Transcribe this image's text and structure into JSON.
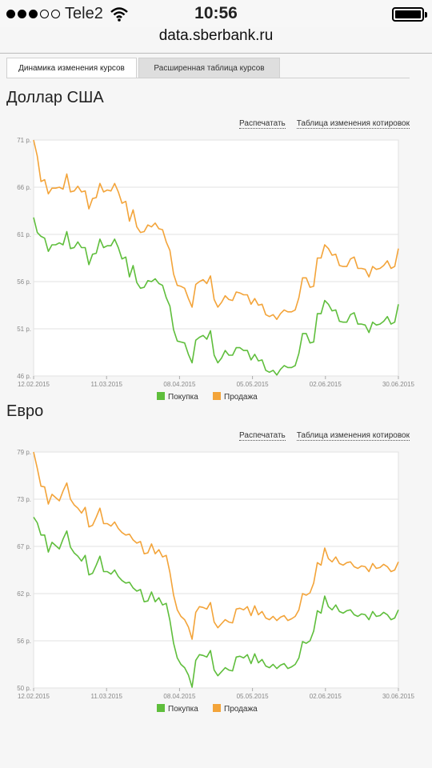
{
  "status_bar": {
    "carrier": "Tele2",
    "time": "10:56",
    "signal_full": 3,
    "signal_total": 5
  },
  "browser": {
    "url": "data.sberbank.ru"
  },
  "tabs": [
    {
      "label": "Динамика изменения курсов",
      "active": true
    },
    {
      "label": "Расширенная таблица курсов",
      "active": false
    }
  ],
  "links": {
    "print": "Распечатать",
    "table": "Таблица изменения котировок"
  },
  "colors": {
    "buy": "#5fbe3c",
    "sell": "#f3a43a",
    "grid": "#e2e2e2",
    "axis": "#aaaaaa"
  },
  "chart_data": [
    {
      "type": "line",
      "title": "Доллар США",
      "x_tick_labels": [
        "12.02.2015",
        "11.03.2015",
        "08.04.2015",
        "05.05.2015",
        "02.06.2015",
        "30.06.2015"
      ],
      "y_tick_labels": [
        "71 р.",
        "66 р.",
        "61 р.",
        "56 р.",
        "51 р.",
        "46 р."
      ],
      "ylim": [
        46,
        71
      ],
      "legend": [
        "Покупка",
        "Продажа"
      ],
      "series": [
        {
          "name": "Покупка",
          "values": [
            62.8,
            61.2,
            60.8,
            60.6,
            59.2,
            59.9,
            59.9,
            60.1,
            59.9,
            61.3,
            59.5,
            59.6,
            60.2,
            59.6,
            59.6,
            57.8,
            58.9,
            59.0,
            60.5,
            59.6,
            59.8,
            59.8,
            60.5,
            59.6,
            58.4,
            58.6,
            56.5,
            57.7,
            55.9,
            55.3,
            55.4,
            56.1,
            56.0,
            56.3,
            55.8,
            55.6,
            54.3,
            53.4,
            50.9,
            49.7,
            49.6,
            49.5,
            48.3,
            47.4,
            49.8,
            50.1,
            50.3,
            49.9,
            50.8,
            48.2,
            47.4,
            47.9,
            48.7,
            48.2,
            48.2,
            49.0,
            49.0,
            48.7,
            48.7,
            47.7,
            48.3,
            47.6,
            47.7,
            46.6,
            46.4,
            46.6,
            46.1,
            46.7,
            47.1,
            46.9,
            46.9,
            47.1,
            48.4,
            50.5,
            50.5,
            49.5,
            49.6,
            52.6,
            52.6,
            54.0,
            53.6,
            52.9,
            53.0,
            51.8,
            51.7,
            51.7,
            52.5,
            52.7,
            51.5,
            51.5,
            51.4,
            50.6,
            51.7,
            51.4,
            51.5,
            51.8,
            52.3,
            51.5,
            51.7,
            53.6
          ]
        },
        {
          "name": "Продажа",
          "values": [
            71.0,
            69.3,
            66.6,
            66.8,
            65.3,
            65.9,
            65.9,
            66.0,
            65.8,
            67.4,
            65.5,
            65.6,
            66.1,
            65.5,
            65.6,
            63.7,
            64.8,
            64.9,
            66.4,
            65.5,
            65.7,
            65.6,
            66.4,
            65.5,
            64.3,
            64.5,
            62.4,
            63.6,
            61.8,
            61.2,
            61.3,
            62.0,
            61.8,
            62.2,
            61.6,
            61.5,
            60.2,
            59.3,
            56.8,
            55.6,
            55.5,
            55.3,
            54.2,
            53.3,
            55.7,
            56.0,
            56.2,
            55.8,
            56.6,
            54.1,
            53.3,
            53.8,
            54.5,
            54.1,
            54.0,
            54.9,
            54.8,
            54.6,
            54.6,
            53.6,
            54.2,
            53.5,
            53.6,
            52.5,
            52.3,
            52.5,
            52.0,
            52.6,
            53.0,
            52.8,
            52.8,
            53.0,
            54.3,
            56.4,
            56.4,
            55.4,
            55.5,
            58.5,
            58.5,
            59.9,
            59.5,
            58.8,
            58.9,
            57.7,
            57.6,
            57.6,
            58.4,
            58.6,
            57.4,
            57.4,
            57.3,
            56.5,
            57.6,
            57.3,
            57.4,
            57.7,
            58.2,
            57.4,
            57.6,
            59.5
          ]
        }
      ]
    },
    {
      "type": "line",
      "title": "Евро",
      "x_tick_labels": [
        "12.02.2015",
        "11.03.2015",
        "08.04.2015",
        "05.05.2015",
        "02.06.2015",
        "30.06.2015"
      ],
      "y_tick_labels": [
        "79 р.",
        "73 р.",
        "67 р.",
        "62 р.",
        "56 р.",
        "50 р."
      ],
      "ylim": [
        50,
        79
      ],
      "legend": [
        "Покупка",
        "Продажа"
      ],
      "series": [
        {
          "name": "Покупка",
          "values": [
            71.0,
            70.3,
            68.8,
            68.8,
            66.7,
            67.9,
            67.5,
            67.1,
            68.3,
            69.3,
            67.3,
            66.6,
            66.2,
            65.6,
            66.3,
            63.9,
            64.1,
            65.1,
            66.2,
            64.3,
            64.3,
            64.0,
            64.5,
            63.7,
            63.2,
            62.9,
            63.0,
            62.3,
            61.9,
            62.1,
            60.6,
            60.7,
            61.8,
            60.6,
            61.1,
            60.2,
            60.4,
            58.3,
            55.5,
            53.7,
            52.9,
            52.5,
            51.6,
            50.1,
            53.4,
            54.1,
            54.0,
            53.8,
            54.6,
            52.2,
            51.5,
            52.0,
            52.5,
            52.2,
            52.1,
            53.8,
            53.9,
            53.7,
            54.1,
            53.0,
            54.2,
            53.1,
            53.5,
            52.7,
            52.5,
            52.9,
            52.4,
            52.8,
            53.0,
            52.4,
            52.6,
            52.9,
            53.7,
            55.7,
            55.5,
            55.8,
            57.0,
            59.5,
            59.2,
            61.3,
            60.0,
            59.6,
            60.2,
            59.4,
            59.2,
            59.5,
            59.6,
            59.0,
            58.8,
            59.1,
            59.0,
            58.4,
            59.4,
            58.8,
            58.9,
            59.3,
            59.0,
            58.4,
            58.6,
            59.6
          ]
        },
        {
          "name": "Продажа",
          "values": [
            79.0,
            77.0,
            74.8,
            74.7,
            72.6,
            73.8,
            73.4,
            73.0,
            74.2,
            75.2,
            73.2,
            72.5,
            72.1,
            71.5,
            72.2,
            69.8,
            70.0,
            71.0,
            72.1,
            70.2,
            70.2,
            69.9,
            70.4,
            69.6,
            69.1,
            68.8,
            68.9,
            68.2,
            67.8,
            68.0,
            66.5,
            66.6,
            67.7,
            66.5,
            67.0,
            66.1,
            66.3,
            64.2,
            61.4,
            59.6,
            58.8,
            58.4,
            57.5,
            56.0,
            59.3,
            60.0,
            59.9,
            59.7,
            60.5,
            58.1,
            57.4,
            57.9,
            58.4,
            58.1,
            58.0,
            59.7,
            59.8,
            59.6,
            60.0,
            58.9,
            60.1,
            59.0,
            59.4,
            58.6,
            58.4,
            58.8,
            58.3,
            58.7,
            58.9,
            58.3,
            58.5,
            58.8,
            59.6,
            61.6,
            61.4,
            61.7,
            62.9,
            65.4,
            65.1,
            67.2,
            65.9,
            65.5,
            66.1,
            65.3,
            65.1,
            65.4,
            65.5,
            64.9,
            64.7,
            65.0,
            64.9,
            64.3,
            65.3,
            64.7,
            64.8,
            65.2,
            64.9,
            64.3,
            64.5,
            65.5
          ]
        }
      ]
    }
  ]
}
